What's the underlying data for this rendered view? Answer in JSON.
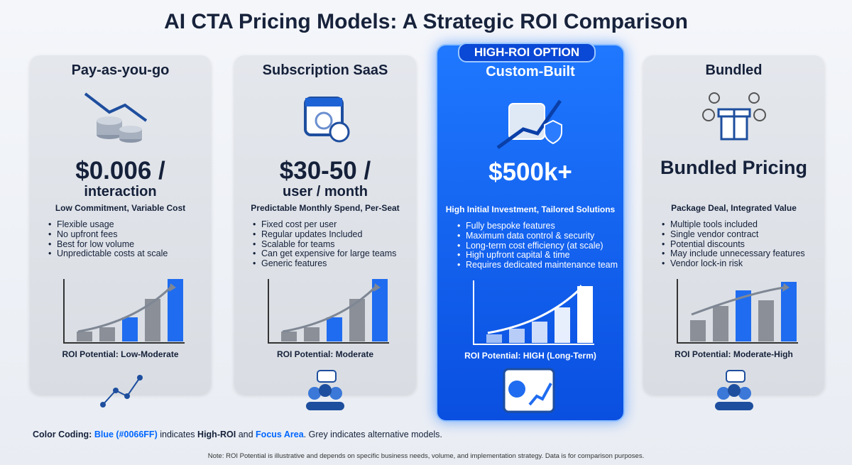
{
  "title": "AI CTA Pricing Models: A Strategic ROI Comparison",
  "badge": "HIGH-ROI OPTION",
  "cards": [
    {
      "name": "Pay-as-you-go",
      "price": [
        "$0.006 /",
        "interaction"
      ],
      "tagline": "Low Commitment, Variable Cost",
      "bullets": [
        "Flexible usage",
        "No upfront fees",
        "Best for low volume",
        "Unpredictable costs at scale"
      ],
      "roi": "ROI Potential: Low-Moderate"
    },
    {
      "name": "Subscription SaaS",
      "price": [
        "$30-50 /",
        "user / month"
      ],
      "tagline": "Predictable Monthly Spend, Per-Seat",
      "bullets": [
        "Fixed cost per user",
        "Regular updates Included",
        "Scalable for teams",
        "Can get expensive for large teams",
        "Generic features"
      ],
      "roi": "ROI Potential: Moderate"
    },
    {
      "name": "Custom-Built",
      "price": [
        "$500k+"
      ],
      "tagline": "High Initial Investment, Tailored Solutions",
      "bullets": [
        "Fully bespoke features",
        "Maximum data control & security",
        "Long-term cost efficiency (at scale)",
        "High upfront capital & time",
        "Requires dedicated maintenance team"
      ],
      "roi": "ROI Potential: HIGH (Long-Term)"
    },
    {
      "name": "Bundled",
      "price": [
        "Bundled Pricing"
      ],
      "tagline": "Package Deal, Integrated Value",
      "bullets": [
        "Multiple tools included",
        "Single vendor contract",
        "Potential discounts",
        "May include unnecessary features",
        "Vendor lock-in risk"
      ],
      "roi": "ROI Potential: Moderate-High"
    }
  ],
  "legend": [
    "Color Coding:",
    "Blue (#0066FF)",
    "indicates",
    "High-ROI",
    "and",
    "Focus Area",
    ". Grey indicates alternative models."
  ],
  "note": "Note: ROI Potential is illustrative and depends on specific business needs, volume, and implementation strategy. Data is for comparison purposes."
}
